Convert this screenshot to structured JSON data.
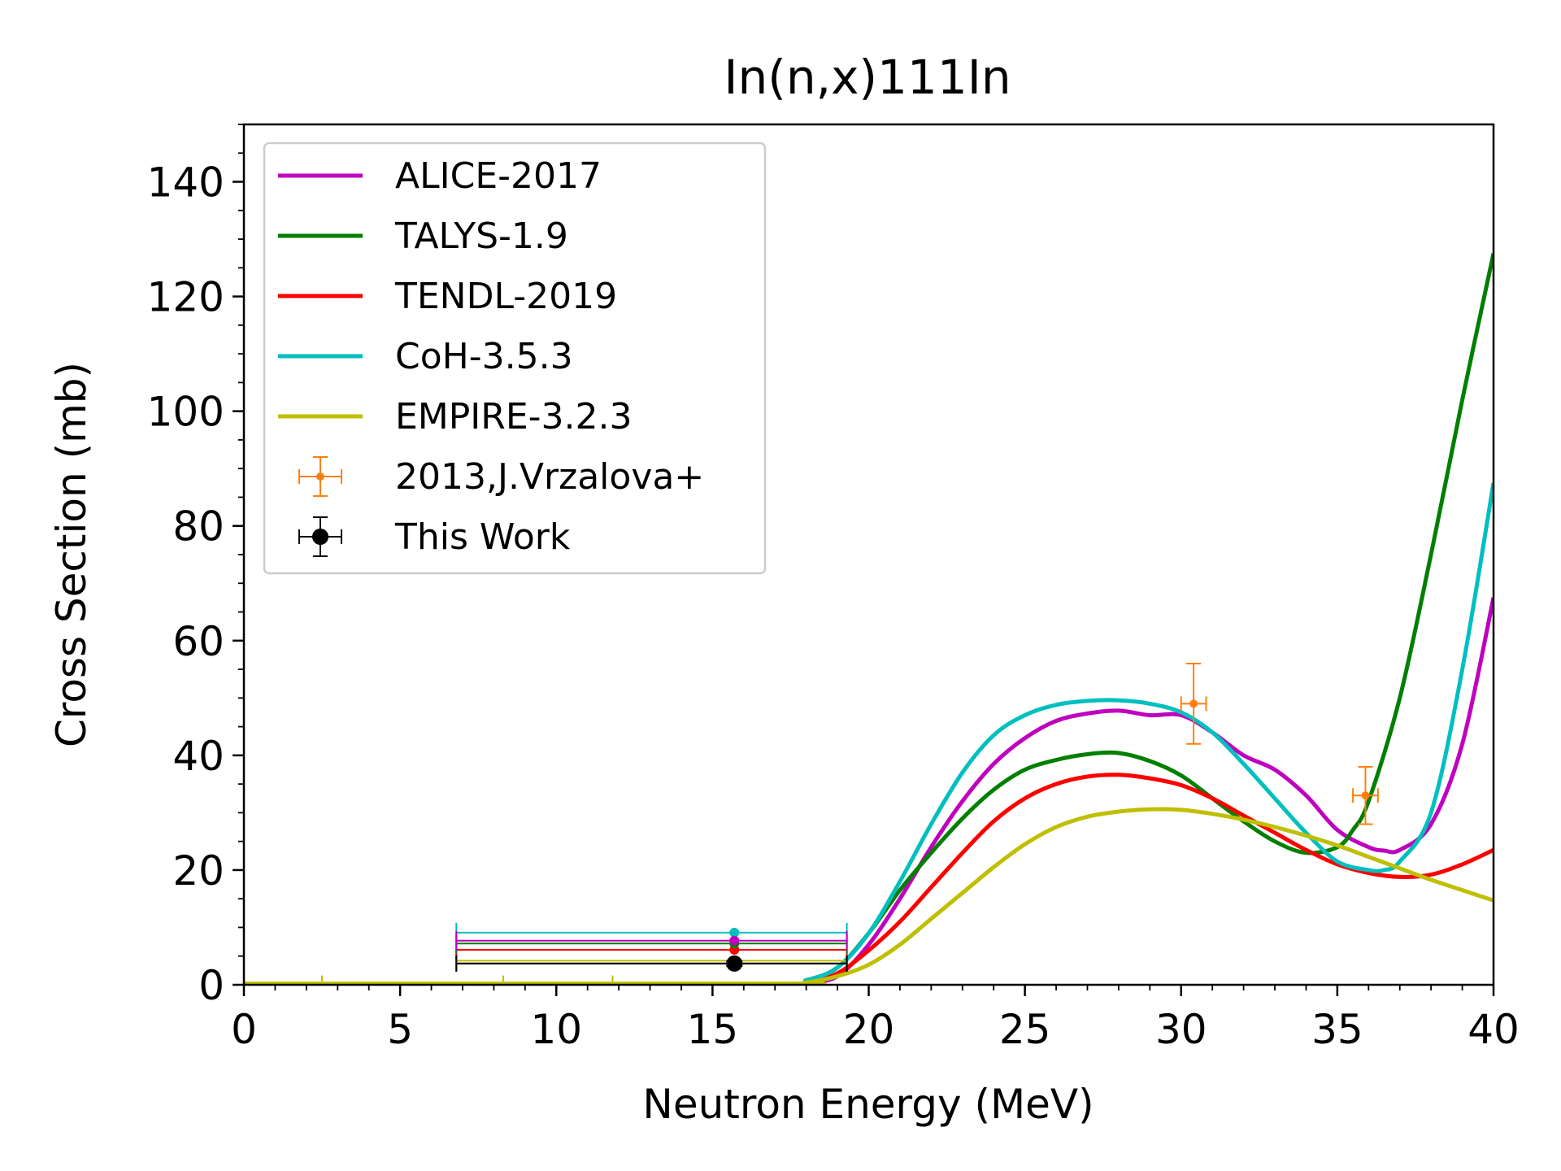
{
  "chart_data": {
    "type": "line",
    "title": "In(n,x)111In",
    "xlabel": "Neutron Energy (MeV)",
    "ylabel": "Cross Section (mb)",
    "xlim": [
      0,
      40
    ],
    "ylim": [
      0,
      150
    ],
    "xticks": [
      "0",
      "5",
      "10",
      "15",
      "20",
      "25",
      "30",
      "35",
      "40"
    ],
    "yticks": [
      "0",
      "20",
      "40",
      "60",
      "80",
      "100",
      "120",
      "140"
    ],
    "grid": false,
    "legend_position": "top-left",
    "series": [
      {
        "name": "ALICE-2017",
        "color": "#bf00bf",
        "x": [
          0,
          17,
          18,
          19,
          20,
          21,
          22,
          23,
          24,
          25,
          26,
          27,
          28,
          29,
          30,
          31,
          32,
          33,
          34,
          35,
          36,
          36.5,
          37,
          38,
          39,
          40
        ],
        "y": [
          0,
          0,
          0.3,
          1.5,
          7,
          15,
          24,
          32,
          38.5,
          43,
          46,
          47.3,
          47.8,
          47,
          47,
          44,
          40,
          37.5,
          33,
          27,
          24,
          23.4,
          23.5,
          28,
          42,
          67.5
        ],
        "flat_value": 7.7
      },
      {
        "name": "TALYS-1.9",
        "color": "#007f00",
        "x": [
          0,
          17,
          18,
          19,
          20,
          21,
          22,
          23,
          24,
          25,
          26,
          27,
          28,
          29,
          30,
          31,
          32,
          33,
          34,
          35,
          35.5,
          36,
          37,
          38,
          39,
          40
        ],
        "y": [
          0,
          0,
          0.8,
          3,
          9,
          16.5,
          23,
          29,
          34,
          37.5,
          39.2,
          40.2,
          40.4,
          39,
          36.5,
          32.5,
          28.5,
          25,
          23,
          24,
          27,
          32,
          50,
          75,
          102,
          127.5
        ],
        "flat_value": 7.2
      },
      {
        "name": "TENDL-2019",
        "color": "#ff0000",
        "x": [
          0,
          17,
          18,
          19,
          20,
          21,
          22,
          23,
          24,
          25,
          26,
          27,
          28,
          29,
          30,
          31,
          32,
          33,
          34,
          35,
          36,
          37,
          38,
          39,
          40
        ],
        "y": [
          0,
          0,
          0.3,
          2,
          6,
          11,
          17,
          23,
          28.5,
          32.5,
          35,
          36.3,
          36.6,
          36,
          34.8,
          32.5,
          29.5,
          26.5,
          23.5,
          21,
          19.5,
          18.8,
          19.2,
          21,
          23.5
        ],
        "flat_value": 6.1
      },
      {
        "name": "CoH-3.5.3",
        "color": "#00bfbf",
        "x": [
          0,
          17,
          18,
          19,
          20,
          21,
          22,
          23,
          24,
          25,
          26,
          27,
          28,
          29,
          30,
          31,
          32,
          33,
          34,
          35,
          36,
          36.5,
          37,
          38,
          39,
          40
        ],
        "y": [
          0,
          0,
          0.8,
          3,
          9,
          18,
          28,
          37,
          43.5,
          47,
          48.8,
          49.5,
          49.6,
          49,
          47.5,
          44,
          38.5,
          32.5,
          26.5,
          21.5,
          20,
          20,
          21.5,
          30,
          55,
          87.5
        ],
        "flat_value": 9.1
      },
      {
        "name": "EMPIRE-3.2.3",
        "color": "#bfbf00",
        "x": [
          0,
          17,
          18,
          19,
          20,
          21,
          22,
          23,
          24,
          25,
          26,
          27,
          28,
          29,
          30,
          31,
          32,
          33,
          34,
          35,
          36,
          37,
          38,
          39,
          40
        ],
        "y": [
          0.2,
          0.2,
          0.4,
          1.5,
          3.5,
          7,
          11.5,
          16,
          20.5,
          24.5,
          27.5,
          29.3,
          30.2,
          30.6,
          30.5,
          29.8,
          28.8,
          27.5,
          26,
          24.3,
          22.3,
          20.3,
          18.3,
          16.5,
          14.7
        ],
        "flat_value": 4.2
      }
    ],
    "flat_range": {
      "x": 15.7,
      "xmin": 6.8,
      "xmax": 19.3
    },
    "empire_low_marks": [
      {
        "x": 2.5,
        "y": 0.2,
        "xerr_low": 0,
        "xerr_high": 0
      },
      {
        "x": 8.3,
        "y": 0.2,
        "xerr_low": 0,
        "xerr_high": 0
      },
      {
        "x": 11.8,
        "y": 0.2,
        "xerr_low": 0,
        "xerr_high": 0
      }
    ],
    "experimental": [
      {
        "name": "2013,J.Vrzalova+",
        "color": "#ff7f0e",
        "points": [
          {
            "x": 30.4,
            "y": 49,
            "xerr": 0.4,
            "yerr": 7
          },
          {
            "x": 35.9,
            "y": 33,
            "xerr": 0.4,
            "yerr": 5
          }
        ]
      },
      {
        "name": "This Work",
        "color": "#000000",
        "points": [
          {
            "x": 15.7,
            "y": 3.7,
            "xerr_low": 8.9,
            "xerr_high": 3.6,
            "yerr": 0.4
          }
        ]
      }
    ]
  }
}
